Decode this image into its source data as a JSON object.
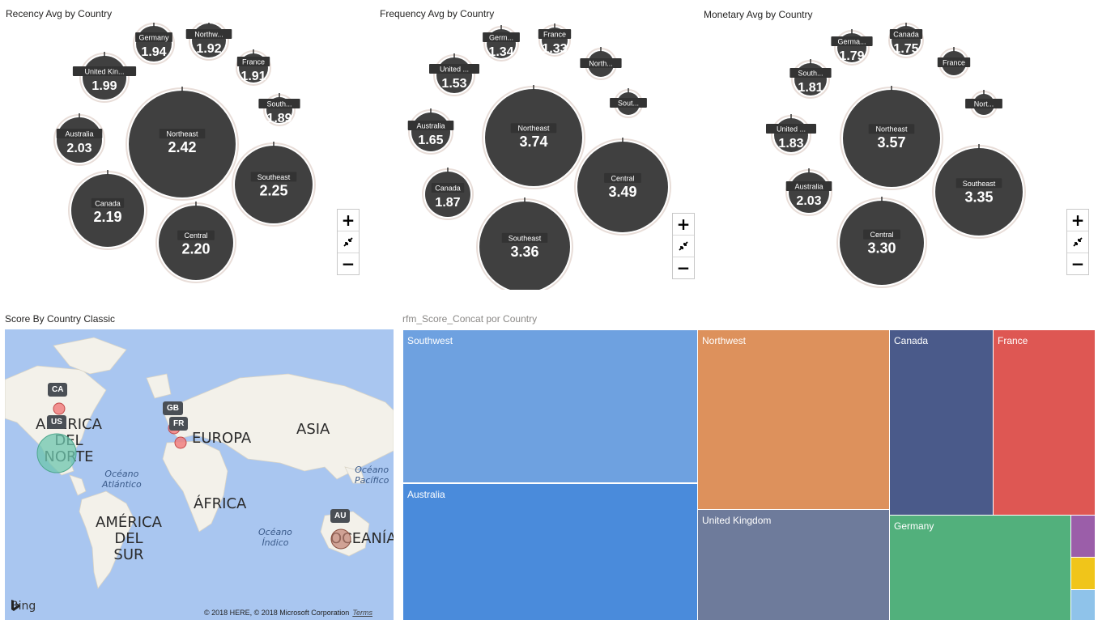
{
  "panels": {
    "recency_title": "Recency Avg by  Country",
    "frequency_title": "Frequency Avg by  Country",
    "monetary_title": "Monetary Avg by  Country",
    "map_title": "Score By Country Classic",
    "treemap_title": "rfm_Score_Concat por Country"
  },
  "zoom_controls": {
    "zoom_in": "+",
    "zoom_out": "−",
    "fit_icon": "collapse-arrows-icon"
  },
  "colors": {
    "bubble_fill": "#404040",
    "bubble_ring": "#e8ddd8",
    "label_bg": "#333333",
    "map_water": "#a9c6f0",
    "map_land": "#f3f1ea"
  },
  "chart_data": [
    {
      "type": "bubble",
      "title": "Recency Avg by  Country",
      "bubbles": [
        {
          "label": "Germany",
          "value_text": "1.94",
          "value": 1.94
        },
        {
          "label": "Northw...",
          "value_text": "1.92",
          "value": 1.92
        },
        {
          "label": "United Kin...",
          "value_text": "1.99",
          "value": 1.99
        },
        {
          "label": "France",
          "value_text": "1.91",
          "value": 1.91
        },
        {
          "label": "South...",
          "value_text": "1.89",
          "value": 1.89
        },
        {
          "label": "Australia",
          "value_text": "2.03",
          "value": 2.03
        },
        {
          "label": "Northeast",
          "value_text": "2.42",
          "value": 2.42
        },
        {
          "label": "Southeast",
          "value_text": "2.25",
          "value": 2.25
        },
        {
          "label": "Canada",
          "value_text": "2.19",
          "value": 2.19
        },
        {
          "label": "Central",
          "value_text": "2.20",
          "value": 2.2
        }
      ]
    },
    {
      "type": "bubble",
      "title": "Frequency Avg by  Country",
      "bubbles": [
        {
          "label": "Germ...",
          "value_text": "1.34",
          "value": 1.34
        },
        {
          "label": "France",
          "value_text": "1.33",
          "value": 1.33
        },
        {
          "label": "United ...",
          "value_text": "1.53",
          "value": 1.53
        },
        {
          "label": "North...",
          "value_text": "",
          "value": null
        },
        {
          "label": "Sout...",
          "value_text": "",
          "value": null
        },
        {
          "label": "Australia",
          "value_text": "1.65",
          "value": 1.65
        },
        {
          "label": "Northeast",
          "value_text": "3.74",
          "value": 3.74
        },
        {
          "label": "Central",
          "value_text": "3.49",
          "value": 3.49
        },
        {
          "label": "Canada",
          "value_text": "1.87",
          "value": 1.87
        },
        {
          "label": "Southeast",
          "value_text": "3.36",
          "value": 3.36
        }
      ]
    },
    {
      "type": "bubble",
      "title": "Monetary Avg by  Country",
      "bubbles": [
        {
          "label": "Germa...",
          "value_text": "1.79",
          "value": 1.79
        },
        {
          "label": "Canada",
          "value_text": "1.75",
          "value": 1.75
        },
        {
          "label": "France",
          "value_text": "",
          "value": null
        },
        {
          "label": "South...",
          "value_text": "1.81",
          "value": 1.81
        },
        {
          "label": "Nort...",
          "value_text": "",
          "value": null
        },
        {
          "label": "United ...",
          "value_text": "1.83",
          "value": 1.83
        },
        {
          "label": "Northeast",
          "value_text": "3.57",
          "value": 3.57
        },
        {
          "label": "Australia",
          "value_text": "2.03",
          "value": 2.03
        },
        {
          "label": "Southeast",
          "value_text": "3.35",
          "value": 3.35
        },
        {
          "label": "Central",
          "value_text": "3.30",
          "value": 3.3
        }
      ]
    },
    {
      "type": "treemap",
      "title": "rfm_Score_Concat por Country",
      "tiles": [
        {
          "label": "Southwest",
          "color": "#6ea1e0"
        },
        {
          "label": "Australia",
          "color": "#4a8bdb"
        },
        {
          "label": "Northwest",
          "color": "#dd915c"
        },
        {
          "label": "United Kingdom",
          "color": "#6e7b9b"
        },
        {
          "label": "Canada",
          "color": "#4a5a8a"
        },
        {
          "label": "France",
          "color": "#de5753"
        },
        {
          "label": "Germany",
          "color": "#52b07c"
        },
        {
          "label": "",
          "color": "#9b5ea9"
        },
        {
          "label": "",
          "color": "#f0c51a"
        },
        {
          "label": "",
          "color": "#8fc3ea"
        }
      ]
    }
  ],
  "map": {
    "continents": {
      "north_america": "AMÉRICA\nDEL\nNORTE",
      "south_america": "AMÉRICA\nDEL\nSUR",
      "europe": "EUROPA",
      "asia": "ASIA",
      "africa": "ÁFRICA",
      "oceania": "OCEANÍA"
    },
    "oceans": {
      "atlantic": "Océano\nAtlántico",
      "pacific": "Océano\nPacífico",
      "indian": "Océano\nÍndico"
    },
    "country_tags": [
      "CA",
      "US",
      "GB",
      "FR",
      "AU"
    ],
    "bing_label": "Bing",
    "copyright": "© 2018 HERE, © 2018 Microsoft Corporation",
    "terms": "Terms"
  }
}
